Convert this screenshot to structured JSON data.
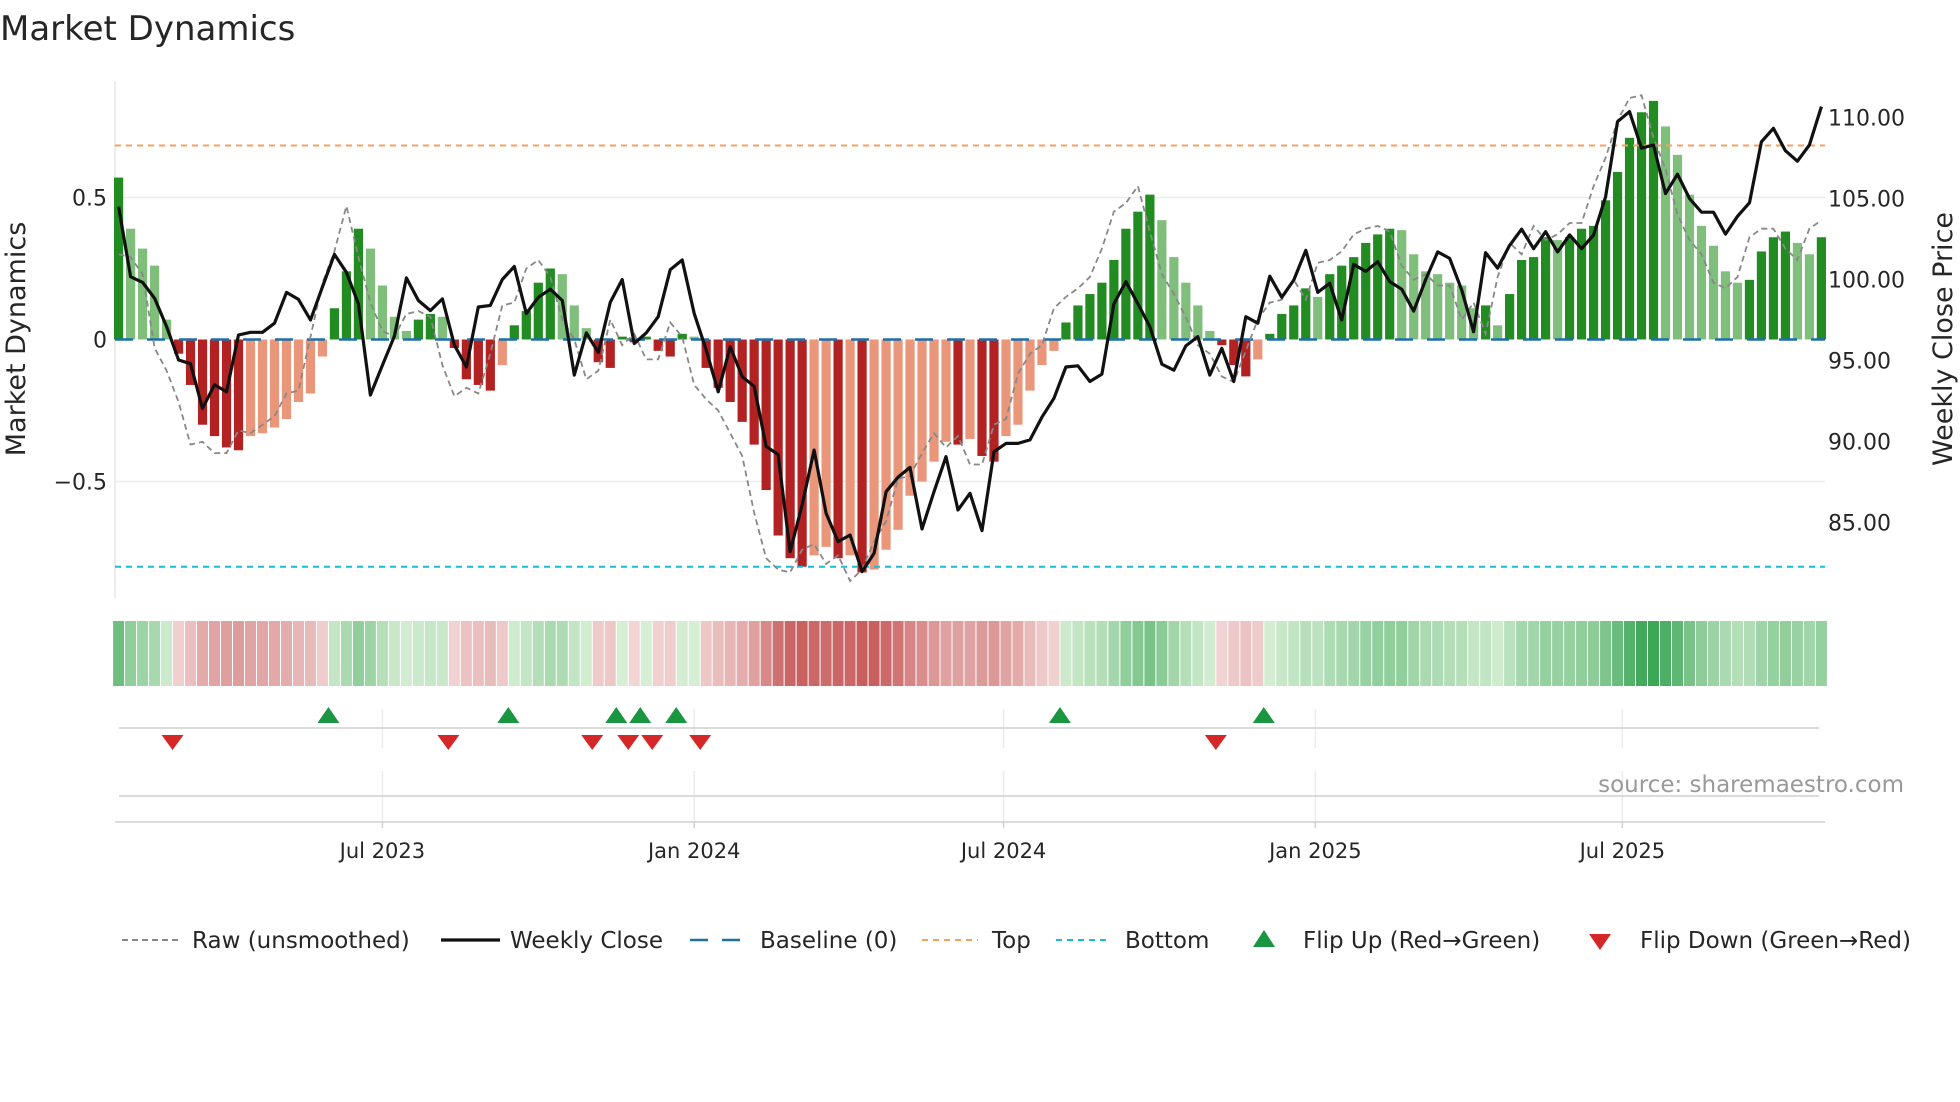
{
  "title": "Market Dynamics",
  "source": "source: sharemaestro.com",
  "colors": {
    "bar_up_strong": "#228b22",
    "bar_up_weak": "#7fbf7b",
    "bar_down_strong": "#b22222",
    "bar_down_weak": "#e9967a",
    "price_line": "#111111",
    "raw_line": "#888888",
    "baseline": "#1f6fa8",
    "top": "#f4a261",
    "bottom": "#17becf",
    "flip_up": "#1a9641",
    "flip_down": "#d62728",
    "grid": "#ececec"
  },
  "chart_data": {
    "type": "bar",
    "title": "Market Dynamics",
    "xlabel": "",
    "ylabel": "Market Dynamics",
    "y2label": "Weekly Close Price",
    "xlim": [
      -0.3,
      142.3
    ],
    "ylim": [
      -0.91,
      0.91
    ],
    "y2lim": [
      80.34,
      112.25
    ],
    "grid": true,
    "legend_position": "bottom",
    "baseline": 0,
    "top_threshold": 0.683,
    "bottom_threshold": -0.8,
    "yticks": [
      {
        "value": 0.5,
        "label": "0.5"
      },
      {
        "value": 0,
        "label": "0"
      },
      {
        "value": -0.5,
        "label": "−0.5"
      }
    ],
    "y2ticks": [
      {
        "value": 110,
        "label": "110.00"
      },
      {
        "value": 105,
        "label": "105.00"
      },
      {
        "value": 100,
        "label": "100.00"
      },
      {
        "value": 95,
        "label": "95.00"
      },
      {
        "value": 90,
        "label": "90.00"
      },
      {
        "value": 85,
        "label": "85.00"
      }
    ],
    "xticks": [
      {
        "week": 22,
        "label": "Jul 2023"
      },
      {
        "week": 48,
        "label": "Jan 2024"
      },
      {
        "week": 73.8,
        "label": "Jul 2024"
      },
      {
        "week": 99.8,
        "label": "Jan 2025"
      },
      {
        "week": 125.4,
        "label": "Jul 2025"
      }
    ],
    "series": [
      {
        "name": "Market Dynamics",
        "kind": "bar",
        "values": [
          0.57,
          0.39,
          0.32,
          0.26,
          0.07,
          -0.05,
          -0.16,
          -0.3,
          -0.34,
          -0.38,
          -0.39,
          -0.34,
          -0.33,
          -0.31,
          -0.28,
          -0.22,
          -0.19,
          -0.06,
          0.11,
          0.24,
          0.39,
          0.32,
          0.19,
          0.08,
          0.03,
          0.07,
          0.09,
          0.08,
          -0.03,
          -0.14,
          -0.16,
          -0.18,
          -0.09,
          0.05,
          0.1,
          0.2,
          0.25,
          0.23,
          0.12,
          0.04,
          -0.08,
          -0.1,
          0.01,
          -0.01,
          0.01,
          -0.04,
          -0.06,
          0.02,
          0.01,
          -0.1,
          -0.17,
          -0.22,
          -0.29,
          -0.37,
          -0.53,
          -0.69,
          -0.77,
          -0.8,
          -0.76,
          -0.73,
          -0.77,
          -0.76,
          -0.82,
          -0.81,
          -0.74,
          -0.67,
          -0.55,
          -0.5,
          -0.43,
          -0.36,
          -0.37,
          -0.35,
          -0.41,
          -0.43,
          -0.34,
          -0.3,
          -0.18,
          -0.09,
          -0.04,
          0.06,
          0.12,
          0.16,
          0.2,
          0.28,
          0.39,
          0.45,
          0.51,
          0.42,
          0.29,
          0.2,
          0.12,
          0.03,
          -0.02,
          -0.09,
          -0.13,
          -0.07,
          0.02,
          0.09,
          0.12,
          0.18,
          0.15,
          0.23,
          0.26,
          0.29,
          0.34,
          0.37,
          0.39,
          0.385,
          0.3,
          0.24,
          0.23,
          0.2,
          0.19,
          0.11,
          0.12,
          0.05,
          0.16,
          0.28,
          0.29,
          0.36,
          0.35,
          0.36,
          0.39,
          0.4,
          0.49,
          0.59,
          0.71,
          0.8,
          0.84,
          0.75,
          0.65,
          0.51,
          0.4,
          0.33,
          0.24,
          0.2,
          0.21,
          0.31,
          0.36,
          0.38,
          0.34,
          0.3,
          0.36
        ]
      },
      {
        "name": "Raw (unsmoothed)",
        "kind": "line",
        "values": [
          0.3,
          0.29,
          0.23,
          -0.03,
          -0.11,
          -0.22,
          -0.37,
          -0.36,
          -0.4,
          -0.4,
          -0.32,
          -0.33,
          -0.3,
          -0.27,
          -0.19,
          -0.18,
          0.01,
          0.2,
          0.31,
          0.47,
          0.29,
          0.13,
          0.03,
          0.01,
          0.09,
          0.1,
          0.08,
          -0.09,
          -0.2,
          -0.17,
          -0.19,
          -0.05,
          0.12,
          0.13,
          0.25,
          0.28,
          0.22,
          0.07,
          0.0,
          -0.14,
          -0.11,
          0.07,
          -0.02,
          0.02,
          -0.07,
          -0.07,
          0.06,
          0.01,
          -0.16,
          -0.21,
          -0.25,
          -0.33,
          -0.41,
          -0.61,
          -0.77,
          -0.81,
          -0.82,
          -0.74,
          -0.72,
          -0.79,
          -0.76,
          -0.85,
          -0.81,
          -0.71,
          -0.64,
          -0.49,
          -0.48,
          -0.4,
          -0.33,
          -0.38,
          -0.34,
          -0.44,
          -0.44,
          -0.3,
          -0.28,
          -0.12,
          -0.05,
          -0.02,
          0.11,
          0.15,
          0.18,
          0.22,
          0.32,
          0.45,
          0.48,
          0.54,
          0.38,
          0.23,
          0.16,
          0.08,
          -0.02,
          -0.05,
          -0.13,
          -0.15,
          -0.04,
          0.07,
          0.13,
          0.14,
          0.21,
          0.14,
          0.27,
          0.28,
          0.31,
          0.37,
          0.39,
          0.4,
          0.38,
          0.26,
          0.21,
          0.23,
          0.19,
          0.19,
          0.07,
          0.13,
          0.02,
          0.22,
          0.34,
          0.3,
          0.4,
          0.35,
          0.37,
          0.41,
          0.41,
          0.54,
          0.64,
          0.77,
          0.85,
          0.86,
          0.71,
          0.6,
          0.44,
          0.35,
          0.3,
          0.2,
          0.18,
          0.22,
          0.36,
          0.39,
          0.39,
          0.32,
          0.28,
          0.39,
          0.42
        ]
      },
      {
        "name": "Weekly Close",
        "kind": "line",
        "axis": "right",
        "values": [
          104.5,
          100.17,
          99.82,
          98.84,
          97.09,
          95.03,
          94.8,
          92.04,
          93.5,
          93.07,
          96.57,
          96.74,
          96.74,
          97.3,
          99.2,
          98.77,
          97.5,
          99.55,
          101.55,
          100.44,
          98.5,
          92.87,
          94.7,
          96.5,
          100.1,
          98.7,
          98.08,
          98.8,
          95.95,
          94.6,
          98.3,
          98.4,
          100,
          100.8,
          97.9,
          98.9,
          99.4,
          98.7,
          94.1,
          96.7,
          95.5,
          98.6,
          100,
          96.05,
          96.7,
          97.7,
          100.6,
          101.2,
          97.9,
          95.65,
          93.07,
          95.85,
          94,
          93.4,
          89.7,
          89.2,
          83.2,
          86.08,
          89.47,
          85.57,
          83.82,
          84.23,
          81.97,
          83.1,
          86.9,
          87.8,
          88.4,
          84.6,
          86.9,
          89.06,
          85.77,
          86.8,
          84.5,
          89.37,
          89.88,
          89.88,
          90.1,
          91.5,
          92.66,
          94.6,
          94.67,
          93.7,
          94.16,
          98.5,
          99.87,
          98.5,
          97.08,
          94.77,
          94.4,
          95.9,
          96.47,
          94.1,
          95.75,
          93.7,
          97.7,
          97.3,
          100.2,
          98.9,
          99.97,
          101.8,
          99.2,
          99.77,
          97.5,
          100.93,
          100.5,
          101.1,
          99.87,
          99.4,
          98.05,
          100,
          101.7,
          101.3,
          99.35,
          96.77,
          101.65,
          100.7,
          102.1,
          103.1,
          101.9,
          102.95,
          101.7,
          102.75,
          101.9,
          102.75,
          105.1,
          109.74,
          110.36,
          108.1,
          108.3,
          105.3,
          106.5,
          105,
          104.15,
          104.15,
          102.8,
          103.9,
          104.74,
          108.5,
          109.33,
          107.95,
          107.3,
          108.3,
          110.67
        ]
      }
    ],
    "legend": [
      {
        "label": "Raw (unsmoothed)",
        "style": "dashed-gray"
      },
      {
        "label": "Weekly Close",
        "style": "solid-black"
      },
      {
        "label": "Baseline (0)",
        "style": "dashed-blue"
      },
      {
        "label": "Top",
        "style": "dashed-orange"
      },
      {
        "label": "Bottom",
        "style": "dashed-cyan"
      },
      {
        "label": "Flip Up (Red→Green)",
        "style": "triangle-up-green"
      },
      {
        "label": "Flip Down (Green→Red)",
        "style": "triangle-down-red"
      }
    ]
  }
}
